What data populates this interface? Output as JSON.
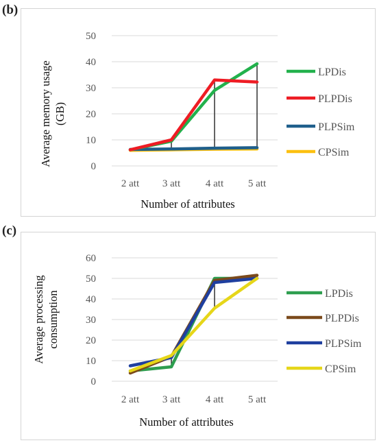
{
  "chart_data": [
    {
      "panel": "(b)",
      "type": "line",
      "categories": [
        "2 att",
        "3 att",
        "4 att",
        "5 att"
      ],
      "xlabel": "Number of attributes",
      "ylabel": "Average memory usage (GB)",
      "ylabel_lines": [
        "Average memory usage",
        "(GB)"
      ],
      "ylim": [
        0,
        50
      ],
      "yticks": [
        0,
        10,
        20,
        30,
        40,
        50
      ],
      "grid": true,
      "legend_position": "right",
      "drop_lines": true,
      "series": [
        {
          "name": "LPDis",
          "color": "#22b14c",
          "values": [
            6.2,
            9.5,
            29,
            39.2
          ]
        },
        {
          "name": "PLPDis",
          "color": "#ee1c24",
          "values": [
            6.2,
            10,
            33,
            32.2
          ]
        },
        {
          "name": "PLPSim",
          "color": "#1f5f8b",
          "values": [
            6.3,
            6.5,
            6.8,
            7
          ]
        },
        {
          "name": "CPSim",
          "color": "#fcc010",
          "values": [
            6,
            6.2,
            6.4,
            6.5
          ]
        }
      ]
    },
    {
      "panel": "(c)",
      "type": "line",
      "categories": [
        "2 att",
        "3 att",
        "4 att",
        "5 att"
      ],
      "xlabel": "Number of attributes",
      "ylabel": "Average processing consumption",
      "ylabel_lines": [
        "Average processing",
        "consumption"
      ],
      "ylim": [
        0,
        60
      ],
      "yticks": [
        0,
        10,
        20,
        30,
        40,
        50,
        60
      ],
      "grid": true,
      "legend_position": "right",
      "drop_lines": true,
      "series": [
        {
          "name": "LPDis",
          "color": "#2e9e4f",
          "values": [
            5,
            7,
            50,
            50
          ]
        },
        {
          "name": "PLPDis",
          "color": "#7b4a1c",
          "values": [
            4,
            12,
            49,
            51.5
          ]
        },
        {
          "name": "PLPSim",
          "color": "#1f3f9f",
          "values": [
            7.5,
            11.5,
            48,
            50
          ]
        },
        {
          "name": "CPSim",
          "color": "#e6d619",
          "values": [
            5,
            12.5,
            35.5,
            50
          ]
        }
      ]
    }
  ]
}
